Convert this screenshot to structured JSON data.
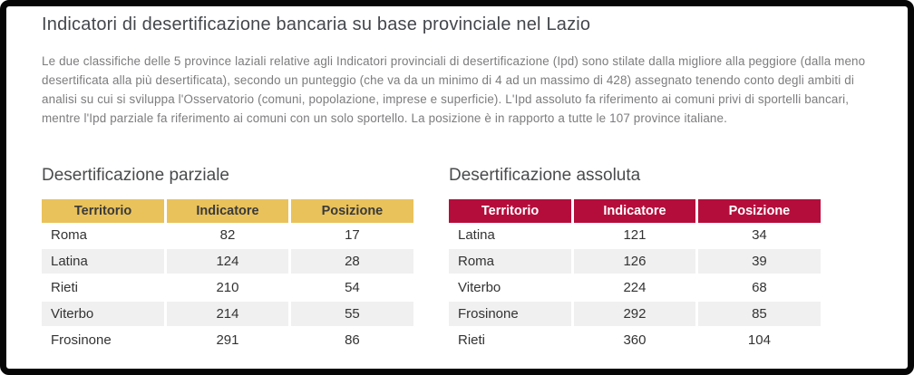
{
  "page": {
    "title": "Indicatori di desertificazione bancaria su base provinciale nel Lazio",
    "description": "Le due classifiche delle 5 province laziali relative agli Indicatori provinciali di desertificazione (Ipd) sono stilate dalla migliore alla peggiore (dalla meno desertificata alla più desertificata), secondo un punteggio (che va da un minimo di 4 ad un massimo di 428) assegnato tenendo conto degli ambiti di analisi su cui si sviluppa l'Osservatorio (comuni, popolazione, imprese e superficie). L'Ipd assoluto fa riferimento ai comuni privi di sportelli bancari, mentre l'Ipd parziale fa riferimento ai comuni con un solo sportello. La posizione è in rapporto a tutte le 107 province italiane."
  },
  "tables": {
    "parziale": {
      "heading": "Desertificazione parziale",
      "header_color": "#e9c25b",
      "header_text_color": "#3a3a3a",
      "columns": [
        "Territorio",
        "Indicatore",
        "Posizione"
      ],
      "rows": [
        [
          "Roma",
          "82",
          "17"
        ],
        [
          "Latina",
          "124",
          "28"
        ],
        [
          "Rieti",
          "210",
          "54"
        ],
        [
          "Viterbo",
          "214",
          "55"
        ],
        [
          "Frosinone",
          "291",
          "86"
        ]
      ]
    },
    "assoluta": {
      "heading": "Desertificazione assoluta",
      "header_color": "#b50d3b",
      "header_text_color": "#ffffff",
      "columns": [
        "Territorio",
        "Indicatore",
        "Posizione"
      ],
      "rows": [
        [
          "Latina",
          "121",
          "34"
        ],
        [
          "Roma",
          "126",
          "39"
        ],
        [
          "Viterbo",
          "224",
          "68"
        ],
        [
          "Frosinone",
          "292",
          "85"
        ],
        [
          "Rieti",
          "360",
          "104"
        ]
      ]
    }
  }
}
